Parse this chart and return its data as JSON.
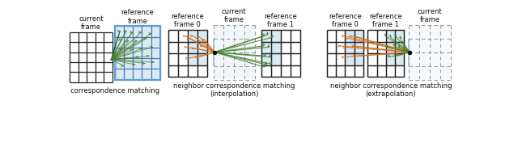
{
  "bg_color": "#ffffff",
  "blue_fill": "#c5dff0",
  "blue_fill_light": "#daeaf5",
  "orange_color": "#d07020",
  "green_color": "#4a8030",
  "dark_green": "#1a4010",
  "grid_solid": "#222222",
  "grid_dashed": "#999999",
  "section1_title": "correspondence matching",
  "section2_title": "neighbor correspondence matching\n(interpolation)",
  "section3_title": "neighbor correspondence matching\n(extrapolation)",
  "lbl_current": "current\nframe",
  "lbl_reference": "reference\nframe",
  "lbl_ref0": "reference\nframe 0",
  "lbl_ref1": "reference\nframe 1",
  "lbl_current2": "current\nframe",
  "lbl_ref0b": "reference\nframe 0",
  "lbl_ref1b": "reference\nframe 1",
  "lbl_current3": "current\nframe"
}
